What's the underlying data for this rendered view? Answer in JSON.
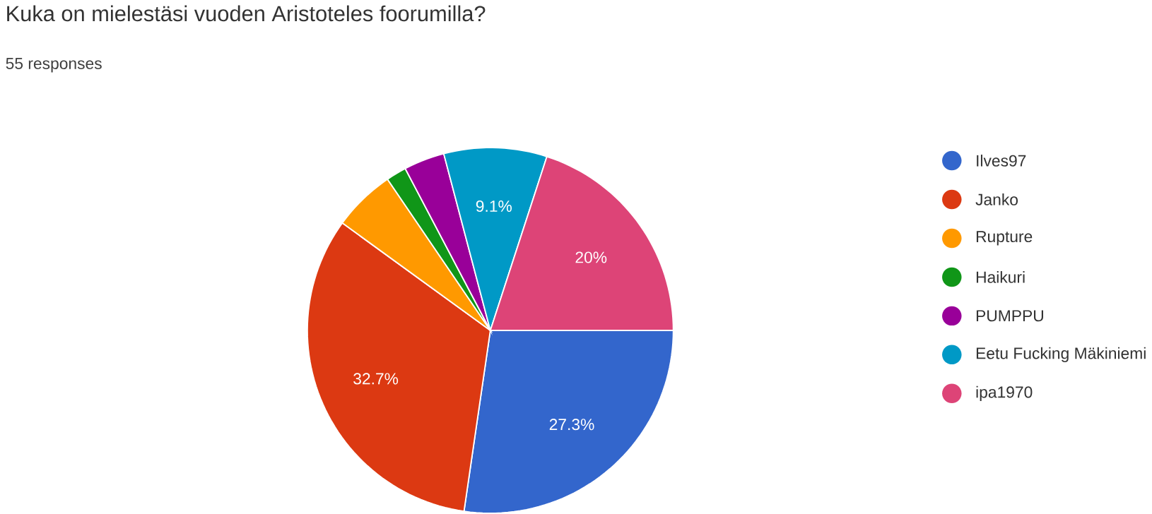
{
  "chart_data": {
    "type": "pie",
    "title": "Kuka on mielestäsi vuoden Aristoteles foorumilla?",
    "subtitle": "55 responses",
    "categories": [
      "Ilves97",
      "Janko",
      "Rupture",
      "Haikuri",
      "PUMPPU",
      "Eetu Fucking Mäkiniemi",
      "ipa1970"
    ],
    "values": [
      27.3,
      32.7,
      5.5,
      1.8,
      3.6,
      9.1,
      20
    ],
    "colors": [
      "#3366cc",
      "#dc3912",
      "#ff9900",
      "#109618",
      "#990099",
      "#0099c6",
      "#dd4477"
    ],
    "value_labels": [
      "27.3%",
      "32.7%",
      null,
      null,
      null,
      "9.1%",
      "20%"
    ],
    "legend": "right"
  }
}
